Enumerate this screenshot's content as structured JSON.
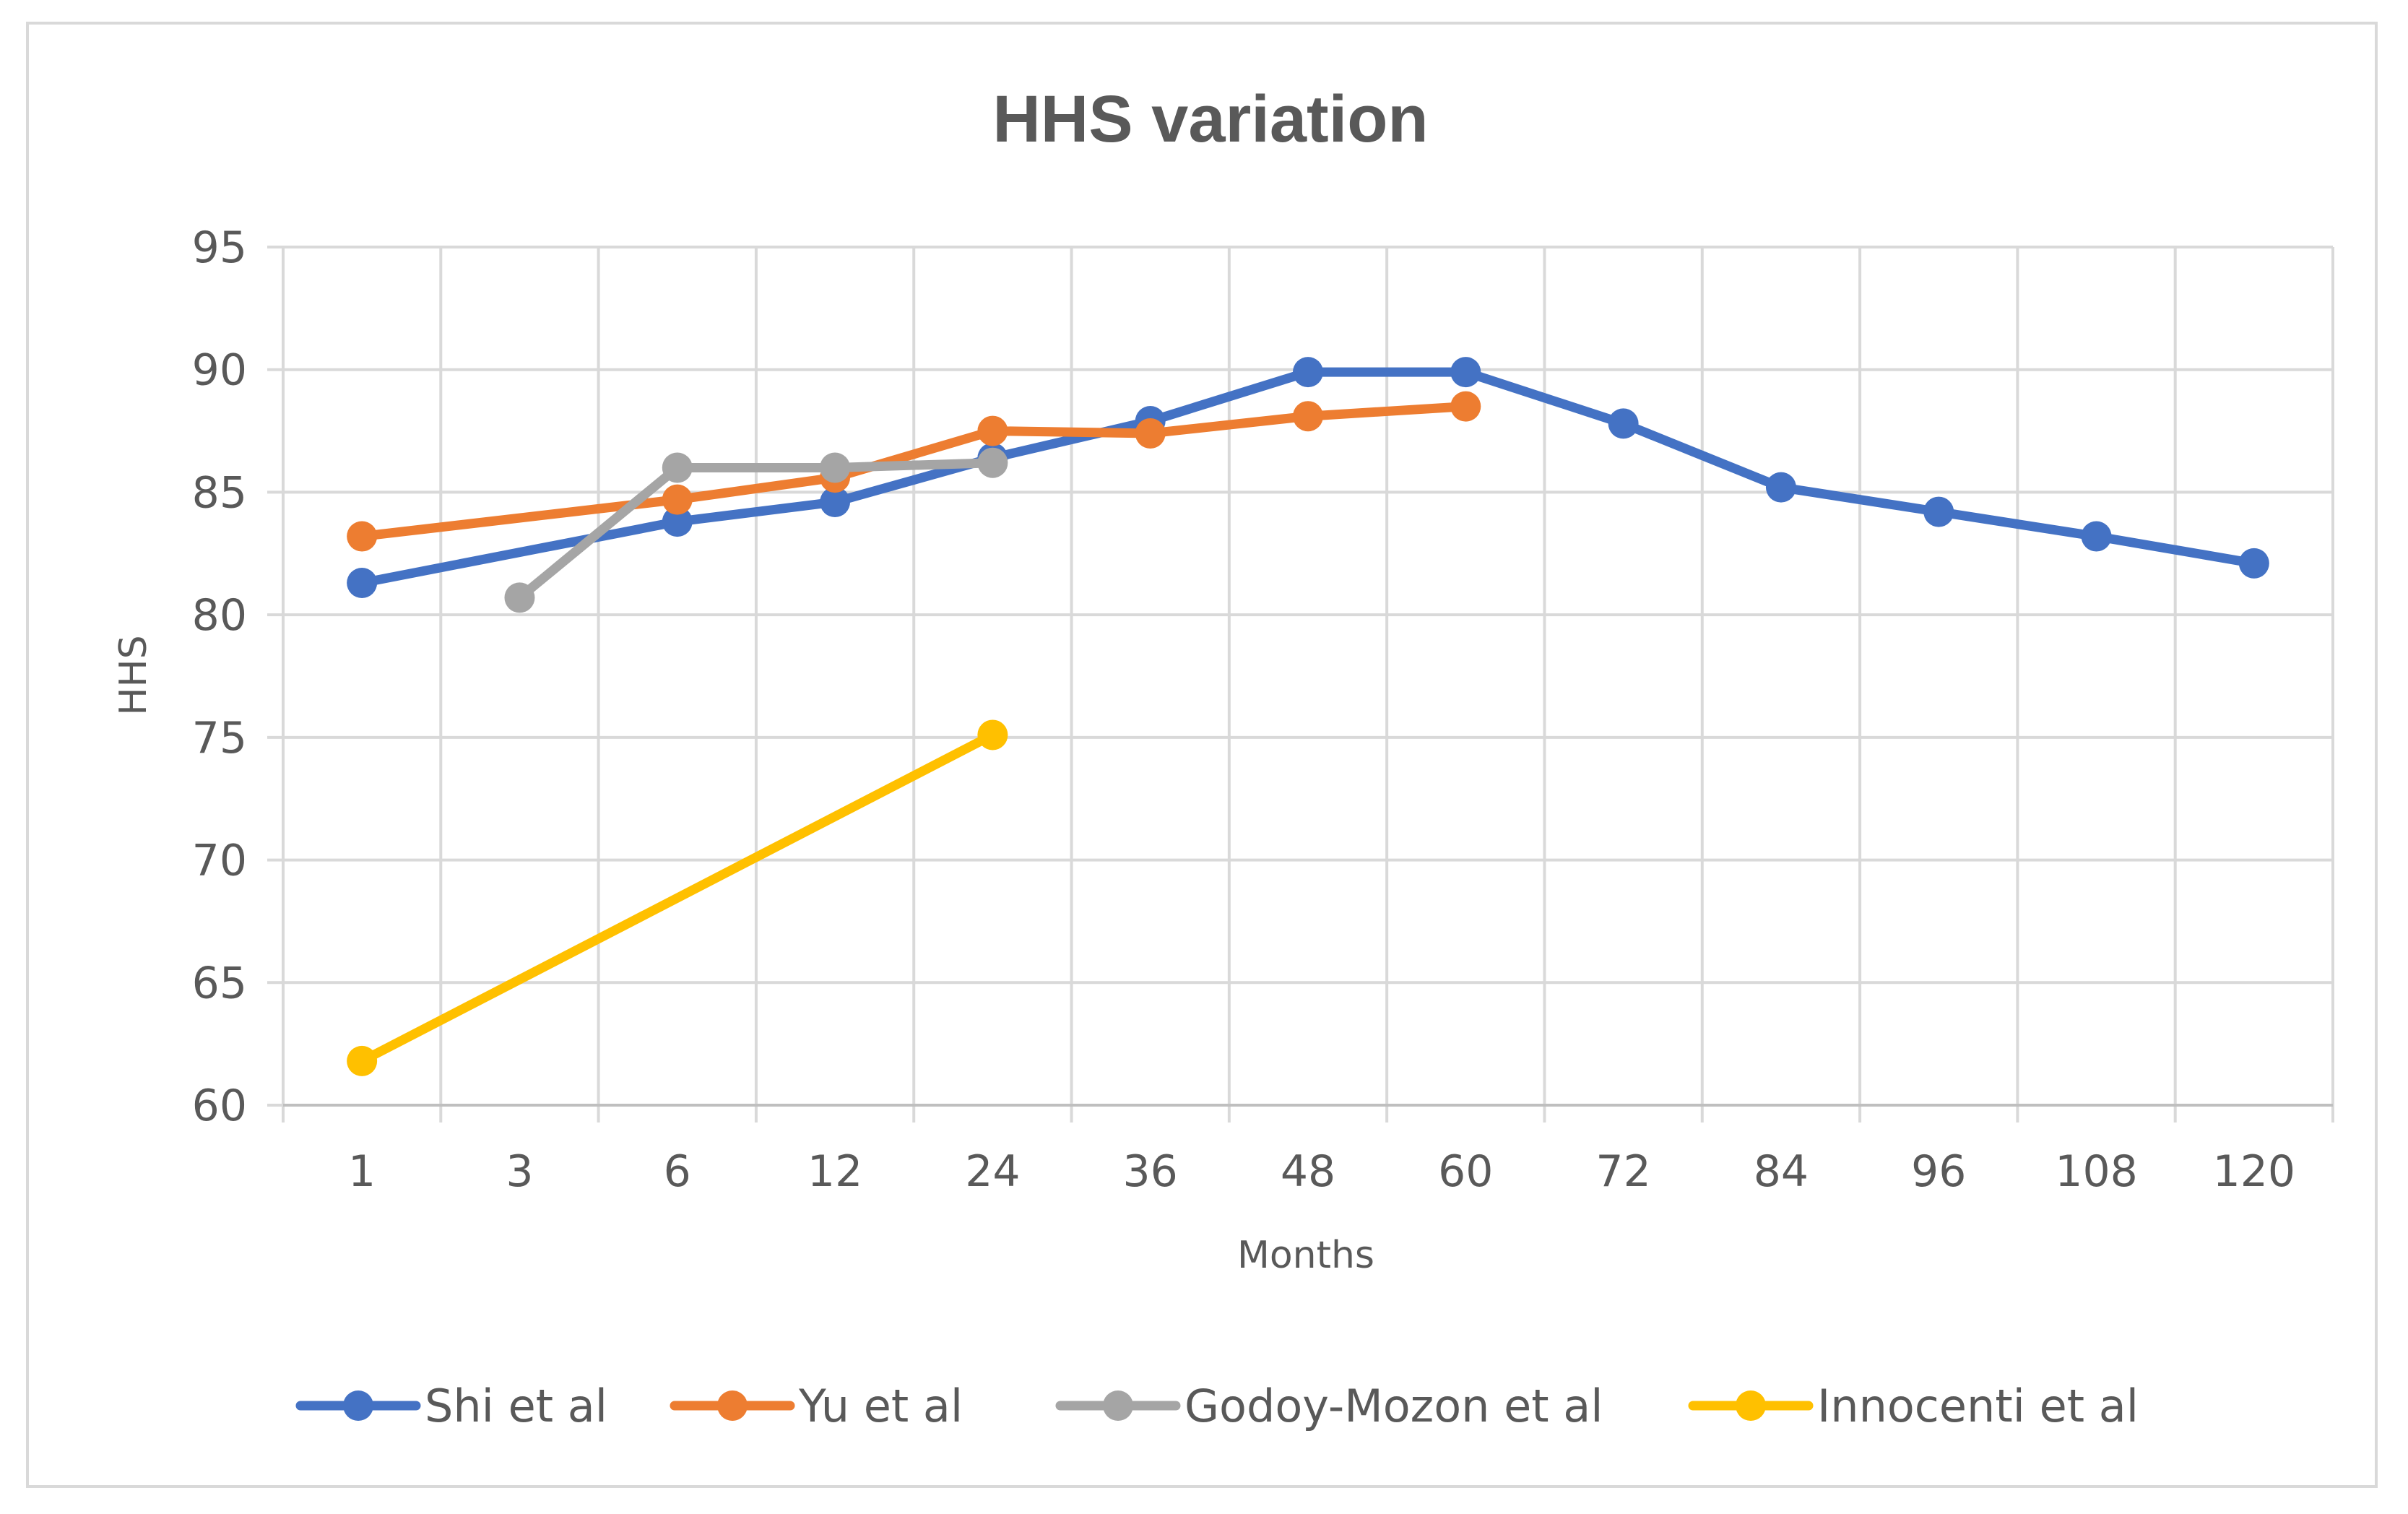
{
  "chart_data": {
    "type": "line",
    "title": "HHS variation",
    "xlabel": "Months",
    "ylabel": "HHS",
    "categories": [
      "1",
      "3",
      "6",
      "12",
      "24",
      "36",
      "48",
      "60",
      "72",
      "84",
      "96",
      "108",
      "120"
    ],
    "ylim": [
      60,
      95
    ],
    "yticks": [
      60,
      65,
      70,
      75,
      80,
      85,
      90,
      95
    ],
    "grid": true,
    "legend_position": "bottom",
    "series": [
      {
        "name": "Shi et al",
        "color": "#4472C4",
        "values": [
          81.3,
          null,
          83.8,
          84.6,
          86.4,
          87.9,
          89.9,
          89.9,
          87.8,
          85.2,
          84.2,
          83.2,
          82.1
        ]
      },
      {
        "name": "Yu et al",
        "color": "#ED7D31",
        "values": [
          83.2,
          null,
          84.7,
          85.6,
          87.5,
          87.4,
          88.1,
          88.5,
          null,
          null,
          null,
          null,
          null
        ]
      },
      {
        "name": "Godoy-Mozon et al",
        "color": "#A5A5A5",
        "values": [
          null,
          80.7,
          86.0,
          86.0,
          86.2,
          null,
          null,
          null,
          null,
          null,
          null,
          null,
          null
        ]
      },
      {
        "name": "Innocenti et al",
        "color": "#FFC000",
        "values": [
          61.8,
          null,
          null,
          null,
          75.1,
          null,
          null,
          null,
          null,
          null,
          null,
          null,
          null
        ]
      }
    ]
  }
}
